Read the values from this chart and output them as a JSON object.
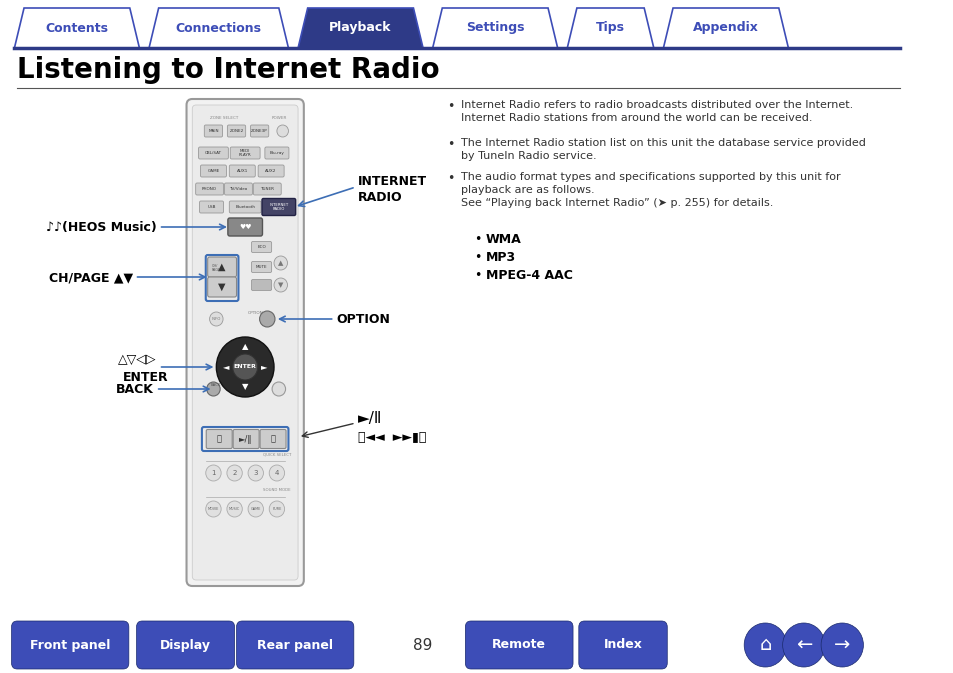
{
  "bg_color": "#ffffff",
  "tab_color_active": "#2e3a87",
  "tab_color_inactive": "#ffffff",
  "tab_border_color": "#3d4db7",
  "tab_text_active": "#ffffff",
  "tab_text_inactive": "#3d4db7",
  "tabs": [
    "Contents",
    "Connections",
    "Playback",
    "Settings",
    "Tips",
    "Appendix"
  ],
  "active_tab": 2,
  "title": "Listening to Internet Radio",
  "title_color": "#000000",
  "title_fontsize": 20,
  "separator_color": "#2e3a87",
  "bullet_points": [
    "Internet Radio refers to radio broadcasts distributed over the Internet.\nInternet Radio stations from around the world can be received.",
    "The Internet Radio station list on this unit the database service provided\nby TuneIn Radio service.",
    "The audio format types and specifications supported by this unit for\nplayback are as follows.\nSee “Playing back Internet Radio” (➤ p. 255) for details."
  ],
  "sub_bullets": [
    "WMA",
    "MP3",
    "MPEG-4 AAC"
  ],
  "bottom_buttons": [
    "Front panel",
    "Display",
    "Rear panel",
    "Remote",
    "Index"
  ],
  "page_number": "89",
  "bottom_btn_color": "#3d4db7",
  "bottom_btn_text_color": "#ffffff",
  "remote_body_color": "#f5f5f5",
  "remote_border_color": "#aaaaaa",
  "label_color": "#000000",
  "arrow_color": "#3d6eb5",
  "label_fontsize": 9
}
